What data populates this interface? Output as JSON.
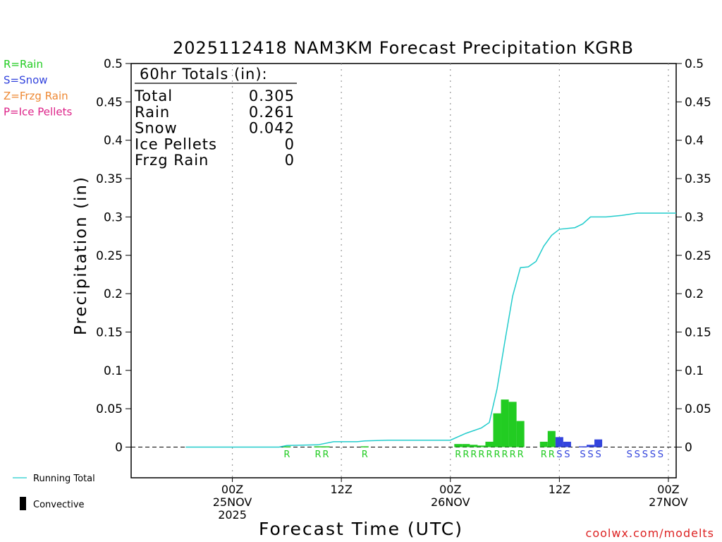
{
  "chart_data": {
    "type": "bar+line",
    "title": "2025112418 NAM3KM Forecast Precipitation KGRB",
    "ylabel": "Precipitation (in)",
    "xlabel": "Forecast Time (UTC)",
    "ylim": [
      -0.04,
      0.5
    ],
    "xlim": [
      -7,
      63
    ],
    "y_ticks": [
      0,
      0.05,
      0.1,
      0.15,
      0.2,
      0.25,
      0.3,
      0.35,
      0.4,
      0.45,
      0.5
    ],
    "y_tick_labels": [
      "0",
      "0.05",
      "0.1",
      "0.15",
      "0.2",
      "0.25",
      "0.3",
      "0.35",
      "0.4",
      "0.45",
      "0.5"
    ],
    "x_ticks": [
      {
        "hour": 6,
        "label": "00Z",
        "sub": "25NOV",
        "sub2": "2025"
      },
      {
        "hour": 20,
        "label": "12Z",
        "sub": "",
        "sub2": ""
      },
      {
        "hour": 34,
        "label": "00Z",
        "sub": "26NOV",
        "sub2": ""
      },
      {
        "hour": 48,
        "label": "12Z",
        "sub": "",
        "sub2": ""
      },
      {
        "hour": 62,
        "label": "00Z",
        "sub": "27NOV",
        "sub2": ""
      }
    ],
    "grid_hours": [
      6,
      20,
      34,
      48,
      62
    ],
    "legend_types": [
      {
        "code": "R",
        "text": "R=Rain",
        "color": "#22cc22"
      },
      {
        "code": "S",
        "text": "S=Snow",
        "color": "#3344dd"
      },
      {
        "code": "Z",
        "text": "Z=Frzg Rain",
        "color": "#ee8833"
      },
      {
        "code": "P",
        "text": "P=Ice Pellets",
        "color": "#dd2288"
      }
    ],
    "bars": [
      {
        "hour": 13,
        "value": 0.001,
        "type": "R"
      },
      {
        "hour": 17,
        "value": 0.001,
        "type": "R"
      },
      {
        "hour": 18,
        "value": 0.001,
        "type": "R"
      },
      {
        "hour": 23,
        "value": 0.001,
        "type": "R"
      },
      {
        "hour": 35,
        "value": 0.004,
        "type": "R"
      },
      {
        "hour": 36,
        "value": 0.004,
        "type": "R"
      },
      {
        "hour": 37,
        "value": 0.003,
        "type": "R"
      },
      {
        "hour": 38,
        "value": 0.002,
        "type": "R"
      },
      {
        "hour": 39,
        "value": 0.007,
        "type": "R"
      },
      {
        "hour": 40,
        "value": 0.044,
        "type": "R"
      },
      {
        "hour": 41,
        "value": 0.062,
        "type": "R"
      },
      {
        "hour": 42,
        "value": 0.059,
        "type": "R"
      },
      {
        "hour": 43,
        "value": 0.034,
        "type": "R"
      },
      {
        "hour": 46,
        "value": 0.007,
        "type": "R"
      },
      {
        "hour": 47,
        "value": 0.021,
        "type": "R"
      },
      {
        "hour": 48,
        "value": 0.013,
        "type": "S"
      },
      {
        "hour": 49,
        "value": 0.007,
        "type": "S"
      },
      {
        "hour": 51,
        "value": 0.001,
        "type": "S"
      },
      {
        "hour": 52,
        "value": 0.003,
        "type": "S"
      },
      {
        "hour": 53,
        "value": 0.01,
        "type": "S"
      }
    ],
    "type_markers": [
      {
        "hour": 13,
        "type": "R"
      },
      {
        "hour": 17,
        "type": "R"
      },
      {
        "hour": 18,
        "type": "R"
      },
      {
        "hour": 23,
        "type": "R"
      },
      {
        "hour": 35,
        "type": "R"
      },
      {
        "hour": 36,
        "type": "R"
      },
      {
        "hour": 37,
        "type": "R"
      },
      {
        "hour": 38,
        "type": "R"
      },
      {
        "hour": 39,
        "type": "R"
      },
      {
        "hour": 40,
        "type": "R"
      },
      {
        "hour": 41,
        "type": "R"
      },
      {
        "hour": 42,
        "type": "R"
      },
      {
        "hour": 43,
        "type": "R"
      },
      {
        "hour": 46,
        "type": "R"
      },
      {
        "hour": 47,
        "type": "R"
      },
      {
        "hour": 48,
        "type": "S"
      },
      {
        "hour": 49,
        "type": "S"
      },
      {
        "hour": 51,
        "type": "S"
      },
      {
        "hour": 52,
        "type": "S"
      },
      {
        "hour": 53,
        "type": "S"
      },
      {
        "hour": 57,
        "type": "S"
      },
      {
        "hour": 58,
        "type": "S"
      },
      {
        "hour": 59,
        "type": "S"
      },
      {
        "hour": 60,
        "type": "S"
      },
      {
        "hour": 61,
        "type": "S"
      }
    ],
    "running_total": {
      "name": "Running Total",
      "color": "#22cccc",
      "points": [
        [
          0,
          0
        ],
        [
          12,
          0
        ],
        [
          13,
          0.002
        ],
        [
          17,
          0.003
        ],
        [
          19,
          0.007
        ],
        [
          22,
          0.007
        ],
        [
          23,
          0.008
        ],
        [
          26,
          0.009
        ],
        [
          34,
          0.009
        ],
        [
          36,
          0.018
        ],
        [
          38,
          0.025
        ],
        [
          39,
          0.032
        ],
        [
          40,
          0.076
        ],
        [
          41,
          0.138
        ],
        [
          42,
          0.197
        ],
        [
          43,
          0.234
        ],
        [
          44,
          0.235
        ],
        [
          45,
          0.242
        ],
        [
          46,
          0.262
        ],
        [
          47,
          0.276
        ],
        [
          48,
          0.284
        ],
        [
          50,
          0.286
        ],
        [
          51,
          0.291
        ],
        [
          52,
          0.3
        ],
        [
          54,
          0.3
        ],
        [
          56,
          0.302
        ],
        [
          58,
          0.305
        ],
        [
          63,
          0.305
        ]
      ]
    }
  },
  "totals_box": {
    "header": "60hr Totals (in):",
    "rows": [
      {
        "label": "Total",
        "value": "0.305"
      },
      {
        "label": "Rain",
        "value": "0.261"
      },
      {
        "label": "Snow",
        "value": "0.042"
      },
      {
        "label": "Ice Pellets",
        "value": "0"
      },
      {
        "label": "Frzg Rain",
        "value": "0"
      }
    ]
  },
  "bottom_legend": {
    "line_label": "Running Total",
    "bar_label": "Convective",
    "line_color": "#22cccc",
    "bar_color": "#000000"
  },
  "credit": "coolwx.com/modelts"
}
